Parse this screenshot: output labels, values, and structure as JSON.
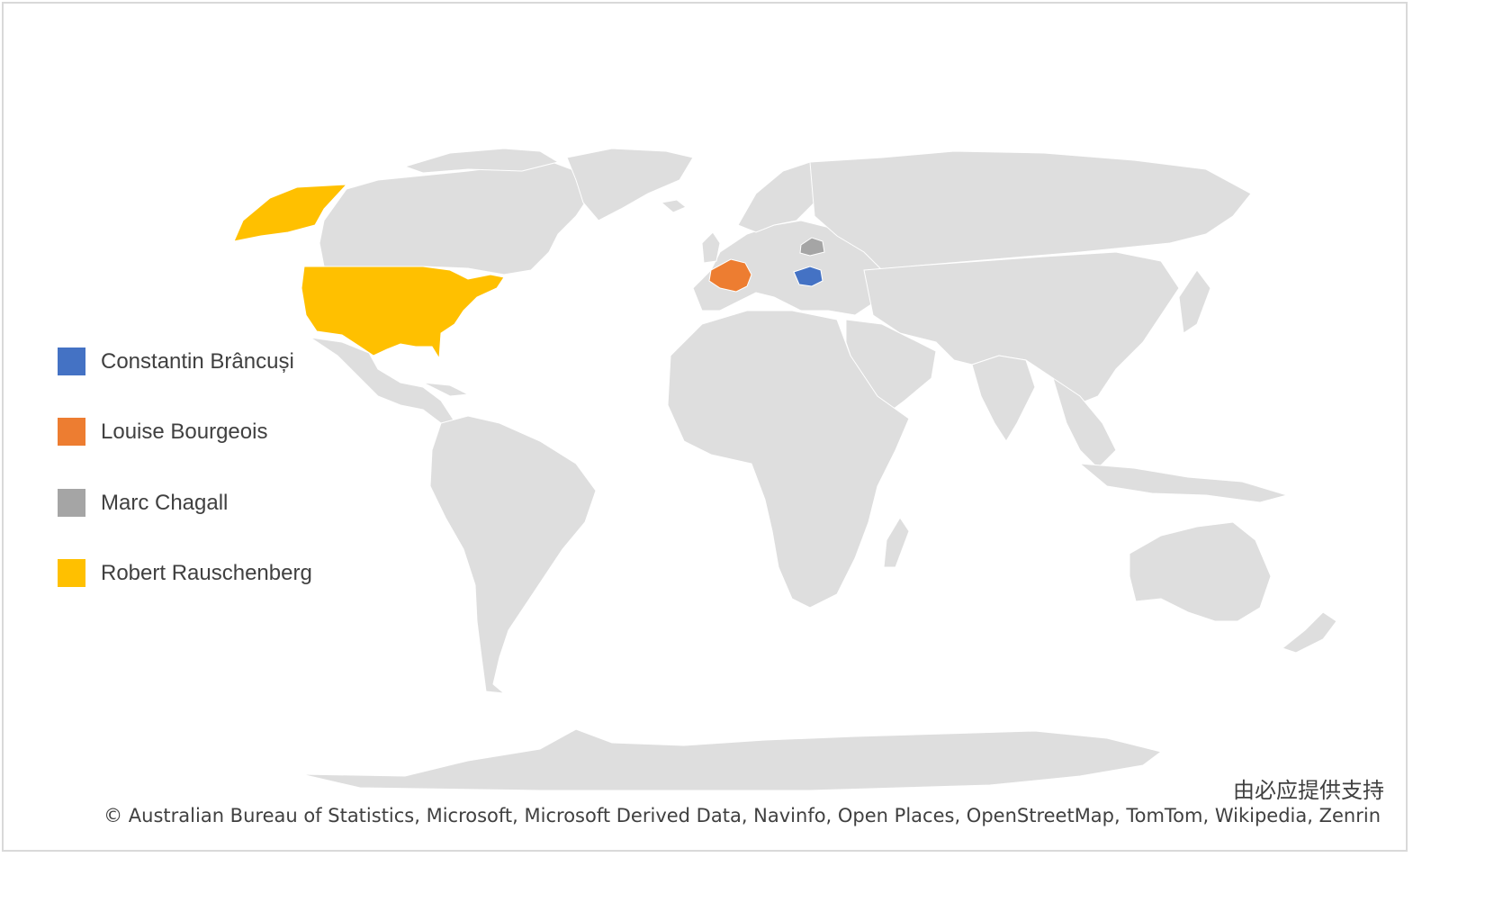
{
  "map": {
    "land_color": "#dedede",
    "border_color": "#ffffff",
    "legend": [
      {
        "label": "Constantin Brâncuși",
        "color": "#4472c4",
        "region": "Romania"
      },
      {
        "label": "Louise Bourgeois",
        "color": "#ed7d31",
        "region": "France"
      },
      {
        "label": "Marc Chagall",
        "color": "#a5a5a5",
        "region": "Belarus"
      },
      {
        "label": "Robert Rauschenberg",
        "color": "#ffc000",
        "region": "United States"
      }
    ]
  },
  "credits": {
    "provider": "由必应提供支持",
    "attribution": "© Australian Bureau of Statistics, Microsoft, Microsoft Derived Data, Navinfo, Open Places, OpenStreetMap, TomTom, Wikipedia, Zenrin"
  }
}
